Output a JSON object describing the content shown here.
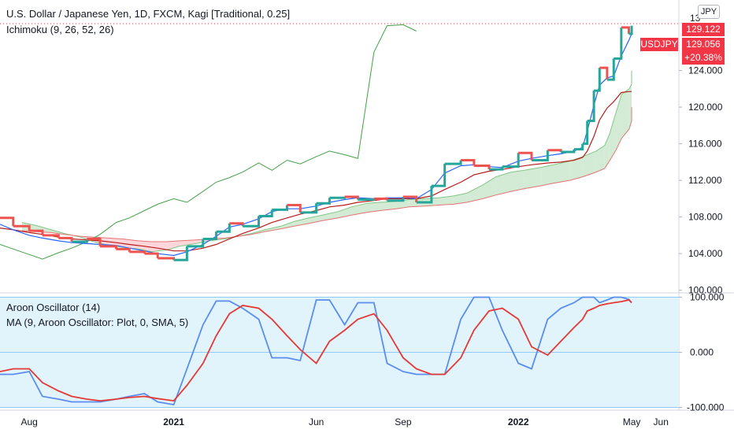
{
  "legend": {
    "title": "U.S. Dollar / Japanese Yen, 1D, FXCM, Kagi [Traditional, 0.25]",
    "ichimoku": "Ichimoku (9, 26, 52, 26)",
    "aroon": "Aroon Oscillator (14)",
    "ma": "MA (9, Aroon Oscillator: Plot, 0, SMA, 5)"
  },
  "price_axis": {
    "currency": "JPY",
    "last_price": "129.122",
    "symbol": "USDJPY",
    "close_price": "129.056",
    "change_pct": "+20.38%",
    "top_cut_label": "13"
  },
  "colors": {
    "up": "#26a69a",
    "down": "#ef5350",
    "lagging": "#43a047",
    "conversion": "#2962ff",
    "base": "#b71c1c",
    "cloud_up": "#c8e6c9",
    "cloud_down": "#ffcdd2",
    "aroon": "#5b8def",
    "ma": "#e53935",
    "band": "#e1f3fb",
    "accent": "#f23645"
  },
  "chart_data": [
    {
      "type": "line",
      "chart_kind": "kagi",
      "x": [
        "2020-07-01",
        "2020-07-15",
        "2020-08-01",
        "2020-08-15",
        "2020-09-01",
        "2020-09-15",
        "2020-10-01",
        "2020-10-15",
        "2020-11-01",
        "2020-11-15",
        "2020-12-01",
        "2020-12-15",
        "2021-01-01",
        "2021-01-15",
        "2021-02-01",
        "2021-02-15",
        "2021-03-01",
        "2021-03-15",
        "2021-04-01",
        "2021-04-15",
        "2021-05-01",
        "2021-05-15",
        "2021-06-01",
        "2021-06-15",
        "2021-07-01",
        "2021-07-15",
        "2021-08-01",
        "2021-08-15",
        "2021-09-01",
        "2021-09-15",
        "2021-10-01",
        "2021-10-15",
        "2021-11-01",
        "2021-11-15",
        "2021-12-01",
        "2021-12-15",
        "2022-01-01",
        "2022-01-15",
        "2022-02-01",
        "2022-02-15",
        "2022-03-01",
        "2022-03-10",
        "2022-03-15",
        "2022-03-22",
        "2022-03-28",
        "2022-04-05",
        "2022-04-12",
        "2022-04-20",
        "2022-04-28",
        "2022-05-01"
      ],
      "series": [
        {
          "name": "Kagi",
          "values": [
            107.9,
            107.0,
            106.5,
            106.0,
            105.7,
            105.3,
            105.6,
            104.8,
            104.5,
            104.2,
            104.0,
            103.5,
            103.3,
            104.8,
            105.6,
            106.4,
            107.3,
            107.0,
            108.1,
            108.8,
            109.3,
            108.5,
            109.5,
            110.1,
            110.2,
            109.9,
            110.0,
            109.8,
            110.2,
            109.6,
            111.4,
            113.8,
            114.2,
            113.6,
            113.2,
            113.5,
            115.0,
            114.2,
            115.3,
            115.1,
            115.4,
            116.0,
            118.5,
            121.8,
            124.3,
            123.0,
            125.3,
            128.7,
            128.0,
            128.9
          ]
        },
        {
          "name": "Conversion line",
          "values": [
            107.2,
            106.6,
            106.0,
            105.7,
            105.4,
            105.2,
            105.1,
            105.0,
            104.9,
            104.6,
            104.3,
            104.0,
            103.8,
            104.2,
            105.0,
            105.9,
            106.9,
            107.2,
            107.8,
            108.6,
            108.9,
            108.9,
            109.2,
            109.6,
            109.9,
            110.1,
            110.0,
            110.1,
            110.1,
            110.0,
            111.0,
            112.8,
            113.6,
            113.7,
            113.5,
            113.4,
            114.1,
            114.4,
            114.7,
            114.9,
            115.2,
            115.6,
            117.4,
            120.2,
            122.4,
            123.2,
            123.4,
            125.6,
            127.3,
            128.0
          ]
        },
        {
          "name": "Base line",
          "values": [
            106.8,
            106.6,
            106.3,
            106.1,
            105.8,
            105.6,
            105.5,
            105.4,
            105.2,
            105.0,
            104.8,
            104.6,
            104.3,
            104.3,
            104.6,
            105.0,
            105.6,
            106.2,
            106.8,
            107.4,
            107.9,
            108.3,
            108.7,
            109.1,
            109.3,
            109.6,
            109.8,
            110.0,
            110.0,
            110.0,
            110.3,
            111.0,
            111.8,
            112.6,
            113.0,
            113.2,
            113.5,
            113.7,
            113.9,
            114.0,
            114.2,
            114.5,
            115.2,
            116.8,
            118.6,
            119.9,
            120.6,
            121.6,
            121.7,
            121.7
          ]
        },
        {
          "name": "Leading span A",
          "values": [
            107.4,
            107.1,
            106.6,
            106.2,
            105.8,
            105.3,
            104.9,
            104.7,
            104.5,
            104.2,
            104.4,
            104.8,
            105.1,
            105.4,
            105.6,
            105.9,
            106.2,
            106.6,
            107.0,
            107.5,
            107.9,
            108.2,
            108.6,
            109.1,
            109.5,
            109.6,
            109.7,
            109.9,
            110.0,
            110.1,
            110.3,
            110.6,
            111.5,
            112.4,
            112.9,
            113.1,
            113.4,
            113.7,
            114.1,
            114.6,
            115.2,
            115.8,
            117.0,
            119.4,
            121.4,
            122.0,
            122.5,
            123.1,
            123.8,
            124.0
          ]
        },
        {
          "name": "Leading span B",
          "values": [
            106.5,
            106.4,
            106.3,
            106.1,
            105.9,
            105.8,
            105.7,
            105.6,
            105.4,
            105.3,
            105.3,
            105.4,
            105.5,
            105.6,
            105.7,
            105.9,
            106.1,
            106.4,
            106.7,
            107.0,
            107.3,
            107.6,
            107.9,
            108.2,
            108.5,
            108.7,
            108.9,
            109.1,
            109.2,
            109.3,
            109.4,
            109.6,
            110.0,
            110.4,
            110.8,
            111.1,
            111.4,
            111.7,
            112.0,
            112.4,
            112.9,
            113.3,
            114.1,
            115.3,
            116.6,
            117.6,
            118.5,
            119.5,
            120.0,
            120.0
          ]
        },
        {
          "name": "Lagging span",
          "values": [
            105.0,
            104.5,
            103.9,
            103.4,
            104.1,
            104.6,
            105.3,
            106.1,
            107.4,
            107.9,
            108.7,
            109.4,
            110.0,
            109.6,
            110.8,
            111.8,
            112.3,
            112.9,
            113.9,
            113.1,
            114.2,
            113.8,
            114.6,
            115.2,
            114.8,
            114.4,
            126.0,
            128.9,
            129.0,
            128.3,
            null,
            null,
            null,
            null,
            null,
            null,
            null,
            null,
            null,
            null,
            null,
            null,
            null,
            null,
            null,
            null,
            null,
            null,
            null,
            null
          ]
        }
      ],
      "y_ticks": [
        100.0,
        104.0,
        108.0,
        112.0,
        116.0,
        120.0,
        124.0
      ],
      "ylim": [
        99.8,
        131.7
      ],
      "x_tick_labels": [
        "Aug",
        "2021",
        "Jun",
        "Sep",
        "2022",
        "May",
        "Jun"
      ],
      "grid": false,
      "price_lines": [
        129.122,
        129.056
      ]
    },
    {
      "type": "line",
      "x": [
        "2020-07-01",
        "2020-07-15",
        "2020-08-01",
        "2020-08-15",
        "2020-09-01",
        "2020-09-15",
        "2020-10-01",
        "2020-10-15",
        "2020-11-01",
        "2020-11-15",
        "2020-12-01",
        "2020-12-15",
        "2021-01-01",
        "2021-01-15",
        "2021-02-01",
        "2021-02-15",
        "2021-03-01",
        "2021-03-15",
        "2021-04-01",
        "2021-04-15",
        "2021-05-01",
        "2021-05-15",
        "2021-06-01",
        "2021-06-15",
        "2021-07-01",
        "2021-07-15",
        "2021-08-01",
        "2021-08-15",
        "2021-09-01",
        "2021-09-15",
        "2021-10-01",
        "2021-10-15",
        "2021-11-01",
        "2021-11-15",
        "2021-12-01",
        "2021-12-15",
        "2022-01-01",
        "2022-01-15",
        "2022-02-01",
        "2022-02-15",
        "2022-03-01",
        "2022-03-10",
        "2022-03-15",
        "2022-03-22",
        "2022-03-28",
        "2022-04-05",
        "2022-04-12",
        "2022-04-20",
        "2022-04-28",
        "2022-05-01"
      ],
      "series": [
        {
          "name": "Aroon Oscillator",
          "values": [
            -40,
            -40,
            -35,
            -80,
            -85,
            -90,
            -90,
            -90,
            -85,
            -80,
            -75,
            -90,
            -95,
            -30,
            50,
            93,
            93,
            80,
            60,
            -10,
            -10,
            -15,
            95,
            95,
            50,
            90,
            90,
            -20,
            -35,
            -40,
            -40,
            -40,
            60,
            100,
            100,
            40,
            -20,
            -30,
            60,
            80,
            90,
            100,
            100,
            100,
            90,
            95,
            100,
            100,
            96,
            90
          ]
        },
        {
          "name": "MA",
          "values": [
            -35,
            -30,
            -30,
            -55,
            -70,
            -80,
            -85,
            -88,
            -85,
            -82,
            -80,
            -84,
            -88,
            -60,
            -20,
            30,
            70,
            85,
            80,
            60,
            30,
            5,
            -20,
            20,
            40,
            60,
            70,
            40,
            -10,
            -30,
            -40,
            -40,
            -10,
            40,
            75,
            80,
            60,
            10,
            -5,
            20,
            45,
            60,
            75,
            80,
            85,
            88,
            90,
            92,
            95,
            90
          ]
        }
      ],
      "y_ticks": [
        -100.0,
        0.0,
        100.0
      ],
      "ylim": [
        -105,
        105
      ],
      "x_tick_labels": [
        "Aug",
        "2021",
        "Jun",
        "Sep",
        "2022",
        "May",
        "Jun"
      ],
      "band": [
        -100,
        100
      ]
    }
  ]
}
